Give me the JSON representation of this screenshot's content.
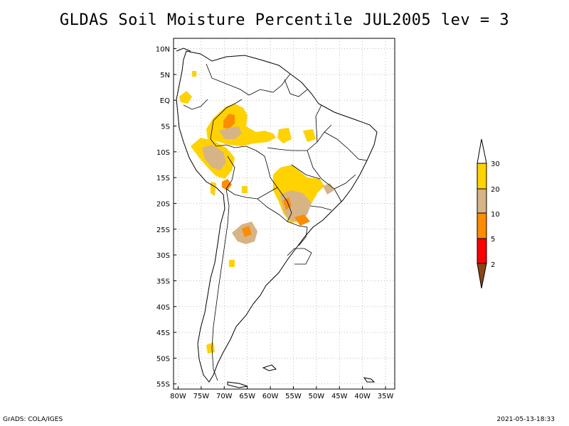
{
  "title": "GLDAS Soil Moisture Percentile JUL2005 lev = 3",
  "footer": {
    "credit": "GrADS: COLA/IGES",
    "timestamp": "2021-05-13-18:33"
  },
  "map": {
    "lon_range": [
      -81,
      -33
    ],
    "lat_range": [
      -56,
      12
    ],
    "x_ticks": [
      "80W",
      "75W",
      "70W",
      "65W",
      "60W",
      "55W",
      "50W",
      "45W",
      "40W",
      "35W"
    ],
    "y_ticks": [
      "10N",
      "5N",
      "EQ",
      "5S",
      "10S",
      "15S",
      "20S",
      "25S",
      "30S",
      "35S",
      "40S",
      "45S",
      "50S",
      "55S"
    ],
    "grid": true
  },
  "legend": {
    "labels": [
      "30",
      "20",
      "10",
      "5",
      "2"
    ],
    "colors": {
      "cap_top": "#ffffff",
      "band_20_30": "#ffd200",
      "band_10_20": "#d7b486",
      "band_5_10": "#ff8c00",
      "band_2_5": "#ff0000",
      "cap_bottom": "#8b4513"
    }
  }
}
